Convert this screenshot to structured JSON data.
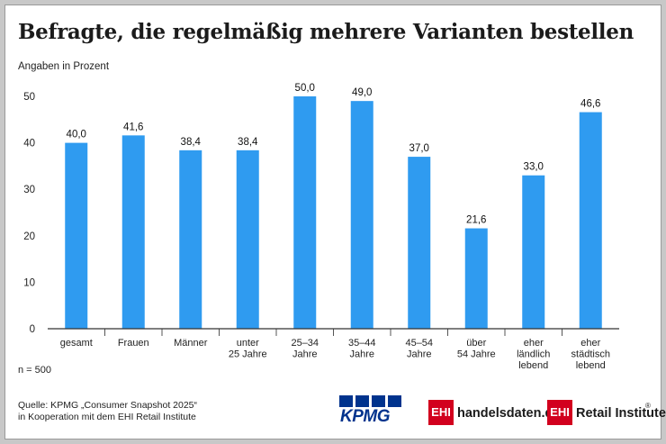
{
  "title": "Befragte, die regelmäßig mehrere Varianten bestellen",
  "unit_label": "Angaben in Prozent",
  "n_note": "n = 500",
  "source": {
    "line1": "Quelle: KPMG „Consumer Snapshot 2025“",
    "line2": "in Kooperation mit dem EHI Retail Institute"
  },
  "logos": {
    "kpmg": "KPMG",
    "ehi_box": "EHI",
    "handelsdaten": "handelsdaten.de",
    "retail": "Retail Institute",
    "registered": "®"
  },
  "colors": {
    "bar": "#2f9bf0",
    "kpmg": "#00338d",
    "ehi": "#d2001e"
  },
  "chart_data": {
    "type": "bar",
    "title": "Befragte, die regelmäßig mehrere Varianten bestellen",
    "ylabel": "Angaben in Prozent",
    "ylim": [
      0,
      50
    ],
    "yticks": [
      "0",
      "10",
      "20",
      "30",
      "40",
      "50"
    ],
    "grid": false,
    "categories": [
      [
        "gesamt"
      ],
      [
        "Frauen"
      ],
      [
        "Männer"
      ],
      [
        "unter",
        "25 Jahre"
      ],
      [
        "25–34",
        "Jahre"
      ],
      [
        "35–44",
        "Jahre"
      ],
      [
        "45–54",
        "Jahre"
      ],
      [
        "über",
        "54 Jahre"
      ],
      [
        "eher",
        "ländlich",
        "lebend"
      ],
      [
        "eher",
        "städtisch",
        "lebend"
      ]
    ],
    "values": [
      40.0,
      41.6,
      38.4,
      38.4,
      50.0,
      49.0,
      37.0,
      21.6,
      33.0,
      46.6
    ],
    "value_labels": [
      "40,0",
      "41,6",
      "38,4",
      "38,4",
      "50,0",
      "49,0",
      "37,0",
      "21,6",
      "33,0",
      "46,6"
    ]
  }
}
